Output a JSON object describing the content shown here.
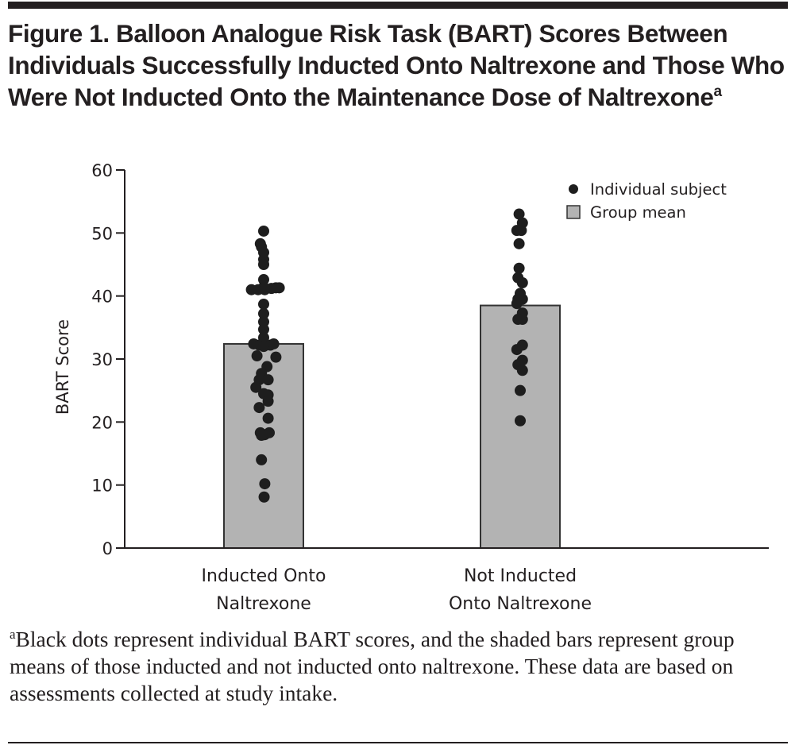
{
  "figure": {
    "title": "Figure 1. Balloon Analogue Risk Task (BART) Scores Between Individuals Successfully Inducted Onto Naltrexone and Those Who Were Not Inducted Onto the Maintenance Dose of Naltrexone",
    "title_superscript": "a",
    "footnote_marker": "a",
    "footnote": "Black dots represent individual BART scores, and the shaded bars represent group means of those inducted and not inducted onto naltrexone. These data are based on assessments collected at study intake.",
    "colors": {
      "text": "#231f20",
      "bar_fill": "#b3b3b3",
      "bar_stroke": "#333333",
      "dot": "#1e1e1e"
    }
  },
  "chart_data": {
    "type": "bar",
    "title": "Balloon Analogue Risk Task (BART) Scores Between Individuals Successfully Inducted Onto Naltrexone and Those Who Were Not Inducted Onto the Maintenance Dose of Naltrexone",
    "xlabel": "",
    "ylabel": "BART Score",
    "ylim": [
      0,
      60
    ],
    "yticks": [
      0,
      10,
      20,
      30,
      40,
      50,
      60
    ],
    "grid": false,
    "legend_position": "top-right",
    "legend": [
      {
        "label": "Individual subject",
        "marker": "dot"
      },
      {
        "label": "Group mean",
        "marker": "square"
      }
    ],
    "categories": [
      [
        "Inducted Onto",
        "Naltrexone"
      ],
      [
        "Not Inducted",
        "Onto Naltrexone"
      ]
    ],
    "series": [
      {
        "name": "Group mean",
        "values": [
          32.4,
          38.5
        ]
      }
    ],
    "individual_points": [
      {
        "group": 0,
        "points": [
          [
            0,
            50.3
          ],
          [
            -0.15,
            48.3
          ],
          [
            -0.1,
            47.8
          ],
          [
            0,
            46.9
          ],
          [
            0,
            45.8
          ],
          [
            0,
            45.0
          ],
          [
            0,
            42.6
          ],
          [
            0,
            41.4
          ],
          [
            -0.55,
            41.0
          ],
          [
            -0.25,
            41.0
          ],
          [
            0.05,
            41.0
          ],
          [
            0.35,
            41.2
          ],
          [
            0.55,
            41.3
          ],
          [
            0.7,
            41.3
          ],
          [
            0,
            38.7
          ],
          [
            0,
            37.2
          ],
          [
            0,
            35.9
          ],
          [
            0,
            34.7
          ],
          [
            0,
            33.4
          ],
          [
            -0.45,
            32.4
          ],
          [
            -0.2,
            32.2
          ],
          [
            0,
            32.0
          ],
          [
            0.3,
            32.2
          ],
          [
            0.45,
            32.4
          ],
          [
            -0.3,
            30.5
          ],
          [
            0.55,
            30.3
          ],
          [
            0.15,
            28.8
          ],
          [
            -0.1,
            27.7
          ],
          [
            -0.2,
            26.7
          ],
          [
            0.2,
            26.7
          ],
          [
            -0.35,
            25.5
          ],
          [
            0,
            24.5
          ],
          [
            0.2,
            24.3
          ],
          [
            0.2,
            23.3
          ],
          [
            -0.2,
            22.3
          ],
          [
            0.2,
            20.6
          ],
          [
            -0.15,
            18.3
          ],
          [
            0.05,
            18.0
          ],
          [
            0.25,
            18.3
          ],
          [
            -0.1,
            17.9
          ],
          [
            -0.1,
            14.0
          ],
          [
            0.05,
            10.2
          ],
          [
            0.02,
            8.1
          ]
        ]
      },
      {
        "group": 1,
        "points": [
          [
            -0.05,
            53.0
          ],
          [
            0.1,
            51.6
          ],
          [
            -0.15,
            50.4
          ],
          [
            0.05,
            50.4
          ],
          [
            -0.05,
            48.3
          ],
          [
            -0.05,
            44.4
          ],
          [
            -0.1,
            42.9
          ],
          [
            0.1,
            42.1
          ],
          [
            0,
            40.4
          ],
          [
            -0.1,
            39.5
          ],
          [
            0.1,
            39.5
          ],
          [
            -0.15,
            38.8
          ],
          [
            0.1,
            37.3
          ],
          [
            -0.1,
            36.3
          ],
          [
            0.1,
            36.3
          ],
          [
            0.1,
            32.2
          ],
          [
            -0.15,
            31.5
          ],
          [
            0.1,
            29.8
          ],
          [
            -0.1,
            29.1
          ],
          [
            0.1,
            28.2
          ],
          [
            0,
            25.0
          ],
          [
            0,
            20.2
          ]
        ]
      }
    ]
  }
}
